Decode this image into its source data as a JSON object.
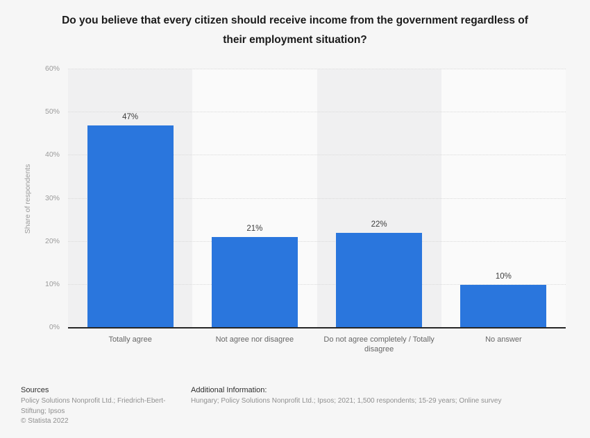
{
  "chart_data": {
    "type": "bar",
    "title": "Do you believe that every citizen should receive income from the government regardless of their employment situation?",
    "categories": [
      "Totally agree",
      "Not agree nor disagree",
      "Do not agree completely / Totally disagree",
      "No answer"
    ],
    "values": [
      47,
      21,
      22,
      10
    ],
    "value_labels": [
      "47%",
      "21%",
      "22%",
      "10%"
    ],
    "xlabel": "",
    "ylabel": "Share of respondents",
    "ylim": [
      0,
      60
    ],
    "ytick_step": 10,
    "ytick_labels": [
      "0%",
      "10%",
      "20%",
      "30%",
      "40%",
      "50%",
      "60%"
    ],
    "grid": "horizontal-dotted",
    "legend": "none",
    "bar_color": "#2a76dd",
    "band_colors": [
      "#f0f0f1",
      "#fafafa"
    ]
  },
  "footer": {
    "sources_heading": "Sources",
    "sources_text": "Policy Solutions Nonprofit Ltd.; Friedrich-Ebert-Stiftung; Ipsos",
    "copyright": "© Statista 2022",
    "additional_heading": "Additional Information:",
    "additional_text": "Hungary; Policy Solutions Nonprofit Ltd.; Ipsos; 2021; 1,500 respondents; 15-29 years; Online survey"
  }
}
